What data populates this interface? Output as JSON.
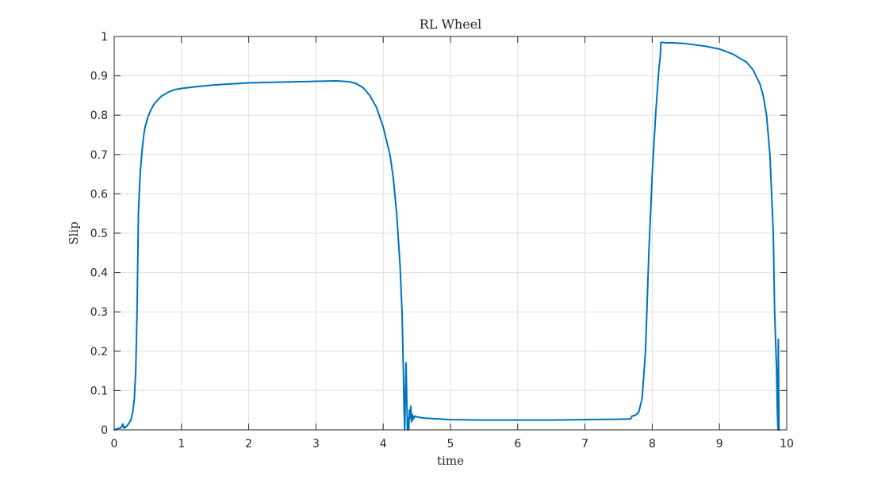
{
  "chart_data": {
    "type": "line",
    "title": "RL Wheel",
    "xlabel": "time",
    "ylabel": "Slip",
    "xlim": [
      0,
      10
    ],
    "ylim": [
      0,
      1
    ],
    "xticks": [
      0,
      1,
      2,
      3,
      4,
      5,
      6,
      7,
      8,
      9,
      10
    ],
    "xtick_labels": [
      "0",
      "1",
      "2",
      "3",
      "4",
      "5",
      "6",
      "7",
      "8",
      "9",
      "10"
    ],
    "yticks": [
      0,
      0.1,
      0.2,
      0.3,
      0.4,
      0.5,
      0.6,
      0.7,
      0.8,
      0.9,
      1
    ],
    "ytick_labels": [
      "0",
      "0.1",
      "0.2",
      "0.3",
      "0.4",
      "0.5",
      "0.6",
      "0.7",
      "0.8",
      "0.9",
      "1"
    ],
    "grid": true,
    "box": true,
    "line_color": "#0072BD",
    "series": [
      {
        "x": [
          0.0,
          0.05,
          0.1,
          0.13,
          0.14,
          0.15,
          0.16,
          0.2,
          0.25,
          0.28,
          0.3,
          0.32,
          0.34,
          0.36,
          0.38,
          0.39,
          0.4,
          0.42,
          0.44,
          0.46,
          0.5,
          0.55,
          0.6,
          0.7,
          0.8,
          0.9,
          1.0,
          1.2,
          1.5,
          2.0,
          2.5,
          3.0,
          3.3,
          3.5,
          3.6,
          3.7,
          3.8,
          3.9,
          4.0,
          4.1,
          4.15,
          4.2,
          4.25,
          4.28,
          4.3,
          4.31,
          4.32,
          4.33,
          4.34,
          4.35,
          4.36,
          4.37,
          4.38,
          4.39,
          4.4,
          4.41,
          4.42,
          4.43,
          4.44,
          4.45,
          4.46,
          4.47,
          4.5,
          4.6,
          4.8,
          5.0,
          5.5,
          6.0,
          6.5,
          7.0,
          7.5,
          7.68,
          7.7,
          7.75,
          7.8,
          7.85,
          7.9,
          7.95,
          8.0,
          8.05,
          8.1,
          8.12,
          8.13,
          8.15,
          8.2,
          8.3,
          8.5,
          8.8,
          9.0,
          9.2,
          9.4,
          9.5,
          9.6,
          9.65,
          9.7,
          9.75,
          9.8,
          9.82,
          9.85,
          9.86,
          9.87,
          9.875,
          9.88,
          9.885,
          9.89
        ],
        "y": [
          0.0,
          0.003,
          0.005,
          0.015,
          0.005,
          0.008,
          0.005,
          0.012,
          0.025,
          0.05,
          0.08,
          0.15,
          0.3,
          0.55,
          0.63,
          0.66,
          0.68,
          0.72,
          0.75,
          0.77,
          0.795,
          0.815,
          0.83,
          0.848,
          0.858,
          0.865,
          0.868,
          0.872,
          0.877,
          0.882,
          0.884,
          0.886,
          0.887,
          0.885,
          0.88,
          0.87,
          0.85,
          0.82,
          0.77,
          0.7,
          0.64,
          0.55,
          0.42,
          0.3,
          0.15,
          0.05,
          0.0,
          0.1,
          0.17,
          0.08,
          0.0,
          0.03,
          0.0,
          0.05,
          0.03,
          0.06,
          0.02,
          0.04,
          0.025,
          0.035,
          0.03,
          0.035,
          0.033,
          0.03,
          0.028,
          0.026,
          0.025,
          0.025,
          0.025,
          0.026,
          0.027,
          0.028,
          0.035,
          0.037,
          0.045,
          0.08,
          0.2,
          0.45,
          0.65,
          0.8,
          0.92,
          0.95,
          0.985,
          0.985,
          0.984,
          0.984,
          0.982,
          0.975,
          0.968,
          0.955,
          0.935,
          0.915,
          0.88,
          0.85,
          0.8,
          0.7,
          0.5,
          0.3,
          0.15,
          0.05,
          0.0,
          0.23,
          0.12,
          0.0,
          0.0
        ]
      }
    ]
  }
}
